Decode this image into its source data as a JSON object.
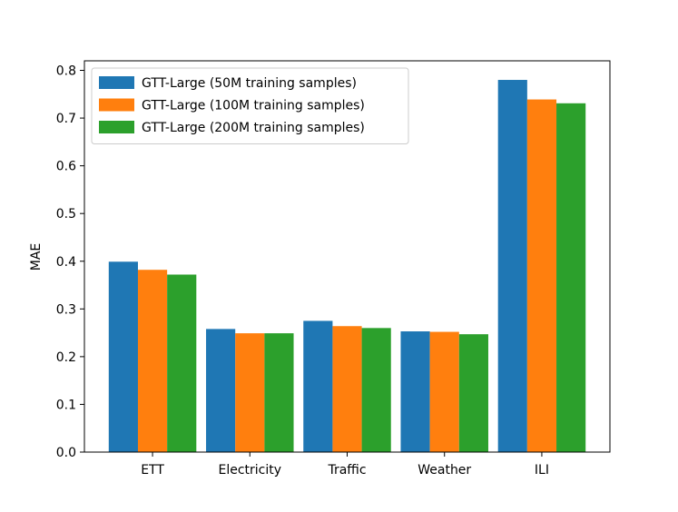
{
  "chart_data": {
    "type": "bar",
    "title": "",
    "xlabel": "",
    "ylabel": "MAE",
    "ylim": [
      0,
      0.82
    ],
    "yticks": [
      "0.0",
      "0.1",
      "0.2",
      "0.3",
      "0.4",
      "0.5",
      "0.6",
      "0.7",
      "0.8"
    ],
    "grid": false,
    "legend_position": "top-left",
    "categories": [
      "ETT",
      "Electricity",
      "Traffic",
      "Weather",
      "ILI"
    ],
    "series": [
      {
        "name": "GTT-Large (50M training samples)",
        "color": "#1f77b4",
        "values": [
          0.399,
          0.258,
          0.275,
          0.253,
          0.78
        ]
      },
      {
        "name": "GTT-Large (100M training samples)",
        "color": "#ff7f0e",
        "values": [
          0.382,
          0.249,
          0.264,
          0.252,
          0.739
        ]
      },
      {
        "name": "GTT-Large (200M training samples)",
        "color": "#2ca02c",
        "values": [
          0.372,
          0.249,
          0.26,
          0.247,
          0.731
        ]
      }
    ]
  }
}
